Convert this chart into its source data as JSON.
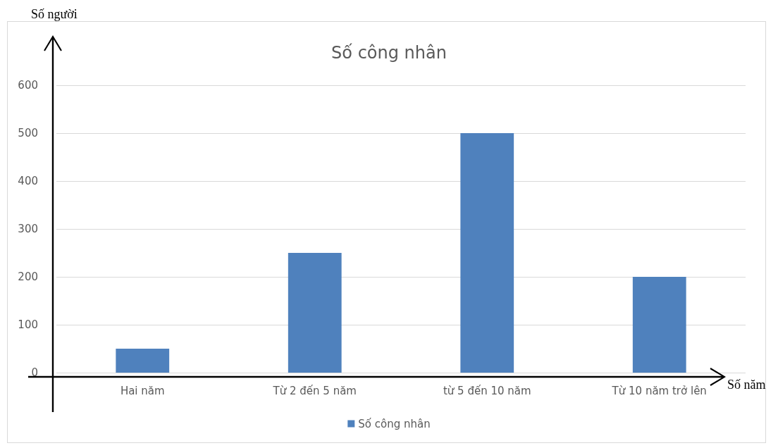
{
  "chart_data": {
    "type": "bar",
    "title": "Số công nhân",
    "xlabel": "Số năm",
    "ylabel": "Số người",
    "categories": [
      "Hai năm",
      "Từ 2 đến 5 năm",
      "từ 5 đến 10 năm",
      "Từ 10 năm trở lên"
    ],
    "series": [
      {
        "name": "Số công nhân",
        "color": "#4f81bd",
        "values": [
          50,
          250,
          500,
          200
        ]
      }
    ],
    "ylim": [
      0,
      600
    ],
    "yticks": [
      0,
      100,
      200,
      300,
      400,
      500,
      600
    ],
    "grid": "y",
    "legend": "bottom"
  }
}
